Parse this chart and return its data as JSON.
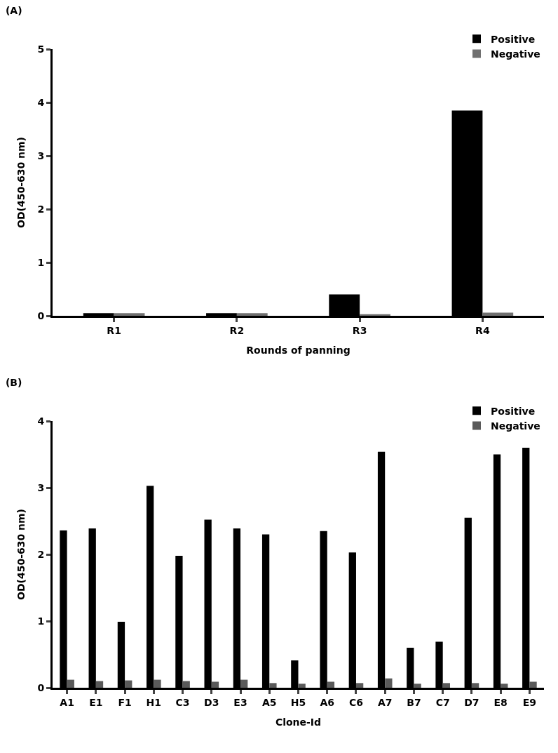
{
  "chart_data": [
    {
      "type": "bar",
      "title": "(A)",
      "xlabel": "Rounds of panning",
      "ylabel": "OD(450-630 nm)",
      "categories": [
        "R1",
        "R2",
        "R3",
        "R4"
      ],
      "series": [
        {
          "name": "Positive",
          "color": "#000000",
          "values": [
            0.05,
            0.05,
            0.4,
            3.85
          ]
        },
        {
          "name": "Negative",
          "color": "#707070",
          "values": [
            0.05,
            0.05,
            0.03,
            0.06
          ]
        }
      ],
      "ylim": [
        0,
        5
      ],
      "yticks": [
        0,
        1,
        2,
        3,
        4,
        5
      ],
      "grid": false,
      "legend": "top right"
    },
    {
      "type": "bar",
      "title": "(B)",
      "xlabel": "Clone-Id",
      "ylabel": "OD(450-630 nm)",
      "categories": [
        "A1",
        "E1",
        "F1",
        "H1",
        "C3",
        "D3",
        "E3",
        "A5",
        "H5",
        "A6",
        "C6",
        "A7",
        "B7",
        "C7",
        "D7",
        "E8",
        "E9"
      ],
      "series": [
        {
          "name": "Positive",
          "color": "#000000",
          "values": [
            2.36,
            2.39,
            0.99,
            3.03,
            1.98,
            2.52,
            2.39,
            2.3,
            0.41,
            2.35,
            2.03,
            3.54,
            0.6,
            0.69,
            2.55,
            3.5,
            3.6
          ]
        },
        {
          "name": "Negative",
          "color": "#5a5a5a",
          "values": [
            0.12,
            0.1,
            0.11,
            0.12,
            0.1,
            0.09,
            0.12,
            0.07,
            0.06,
            0.09,
            0.07,
            0.14,
            0.06,
            0.07,
            0.07,
            0.06,
            0.09
          ]
        }
      ],
      "ylim": [
        0,
        4
      ],
      "yticks": [
        0,
        1,
        2,
        3,
        4
      ],
      "grid": false,
      "legend": "top right"
    }
  ]
}
